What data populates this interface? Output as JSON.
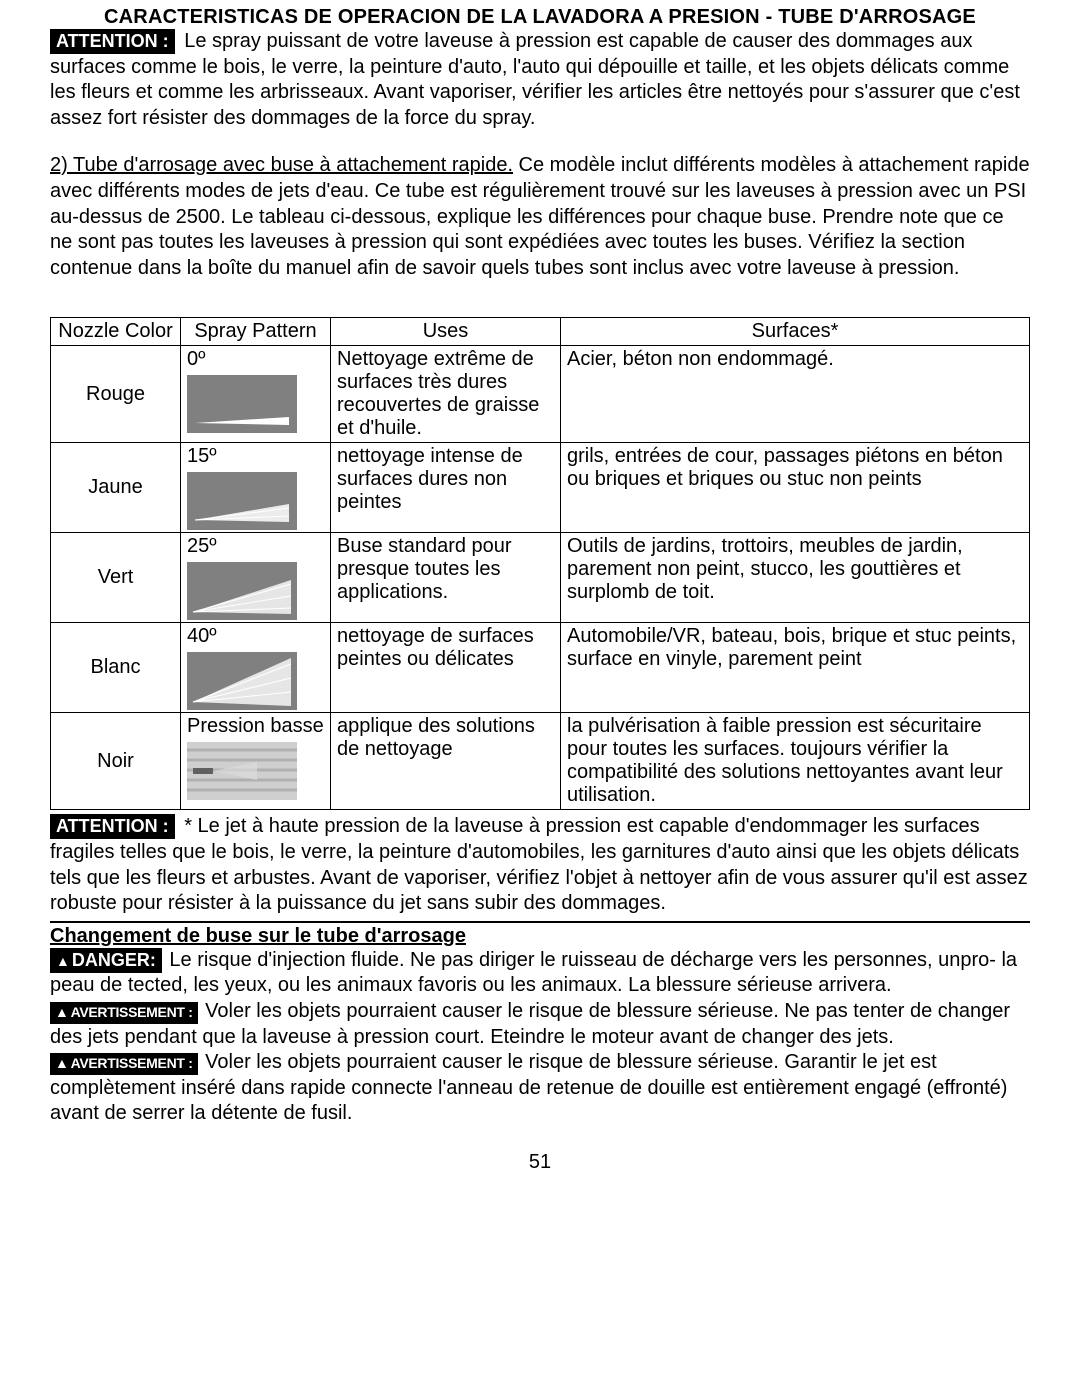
{
  "title": "CARACTERISTICAS DE OPERACION DE LA LAVADORA A PRESION  - TUBE D'ARROSAGE",
  "labels": {
    "attention": "ATTENTION :",
    "danger": "DANGER:",
    "avertissement": "AVERTISSEMENT :"
  },
  "para1": "Le spray puissant de votre laveuse à pression est capable de causer des dommages aux surfaces comme le bois, le verre, la peinture d'auto, l'auto qui dépouille et taille, et les objets délicats comme les fleurs et comme les arbrisseaux. Avant vaporiser, vérifier les articles être nettoyés pour s'assurer que c'est assez fort résister des dommages de la force du spray.",
  "para2_lead": "2) Tube d'arrosage avec buse à attachement rapide.",
  "para2_rest": " Ce modèle inclut différents modèles à attachement rapide avec différents modes de jets d'eau. Ce tube est régulièrement trouvé sur les laveuses à pression avec un PSI au-dessus de 2500. Le tableau ci-dessous, explique les différences pour chaque buse. Prendre note que ce ne sont pas toutes les laveuses à pression qui sont expédiées avec toutes les buses. Vérifiez la section contenue dans la boîte du manuel afin de savoir quels tubes sont inclus avec votre laveuse à pression.",
  "table": {
    "headers": [
      "Nozzle Color",
      "Spray Pattern",
      "Uses",
      "Surfaces*"
    ],
    "rows": [
      {
        "color": "Rouge",
        "spray": "0º",
        "uses": "Nettoyage extrême de surfaces très dures recouvertes de graisse et d'huile.",
        "surfaces": "Acier, béton non endommagé.",
        "spray_kind": "narrow"
      },
      {
        "color": "Jaune",
        "spray": "15º",
        "uses": "nettoyage intense de surfaces dures non peintes",
        "surfaces": "grils, entrées de cour, passages piétons en béton ou briques et briques ou stuc non peints",
        "spray_kind": "small"
      },
      {
        "color": "Vert",
        "spray": "25º",
        "uses": "Buse standard pour presque toutes les applications.",
        "surfaces": "Outils de jardins, trottoirs, meubles de jardin, parement non peint, stucco, les gouttières et surplomb de toit.",
        "spray_kind": "medium"
      },
      {
        "color": "Blanc",
        "spray": "40º",
        "uses": "nettoyage de surfaces peintes ou délicates",
        "surfaces": "Automobile/VR, bateau, bois, brique et stuc peints, surface en vinyle, parement peint",
        "spray_kind": "wide"
      },
      {
        "color": "Noir",
        "spray": "Pression basse",
        "uses": "applique des solutions de nettoyage",
        "surfaces": "la pulvérisation à faible pression est sécuritaire pour toutes les surfaces. toujours vérifier la compatibilité des solutions nettoyantes avant leur utilisation.",
        "spray_kind": "low"
      }
    ]
  },
  "footnote": "*  Le jet à haute pression de la laveuse à pression est capable d'endommager les surfaces fragiles telles que le bois, le verre, la peinture d'automobiles, les garnitures d'auto ainsi que les objets délicats tels que les fleurs et arbustes. Avant de vaporiser, vérifiez l'objet à nettoyer afin de vous assurer qu'il est assez robuste pour résister à la puissance du jet sans subir des dommages.",
  "subhead": "Changement de buse sur le tube d'arrosage",
  "danger_text": " Le risque d'injection fluide. Ne pas diriger le ruisseau de décharge vers les personnes, unpro- la peau de tected, les yeux, ou les animaux favoris ou les animaux. La blessure sérieuse arrivera.",
  "avert1": " Voler les objets pourraient causer le risque de blessure sérieuse. Ne pas tenter de changer des jets pendant que la laveuse à pression court. Eteindre le moteur avant de changer des jets.",
  "avert2": " Voler les objets pourraient causer le risque de blessure sérieuse. Garantir le jet est complètement inséré dans rapide connecte l'anneau de retenue de douille est entièrement engagé (effronté) avant de serrer la détente de fusil.",
  "page_number": "51",
  "colors": {
    "spray_bg": "#808080",
    "spray_fg": "#ffffff",
    "text": "#000000"
  }
}
